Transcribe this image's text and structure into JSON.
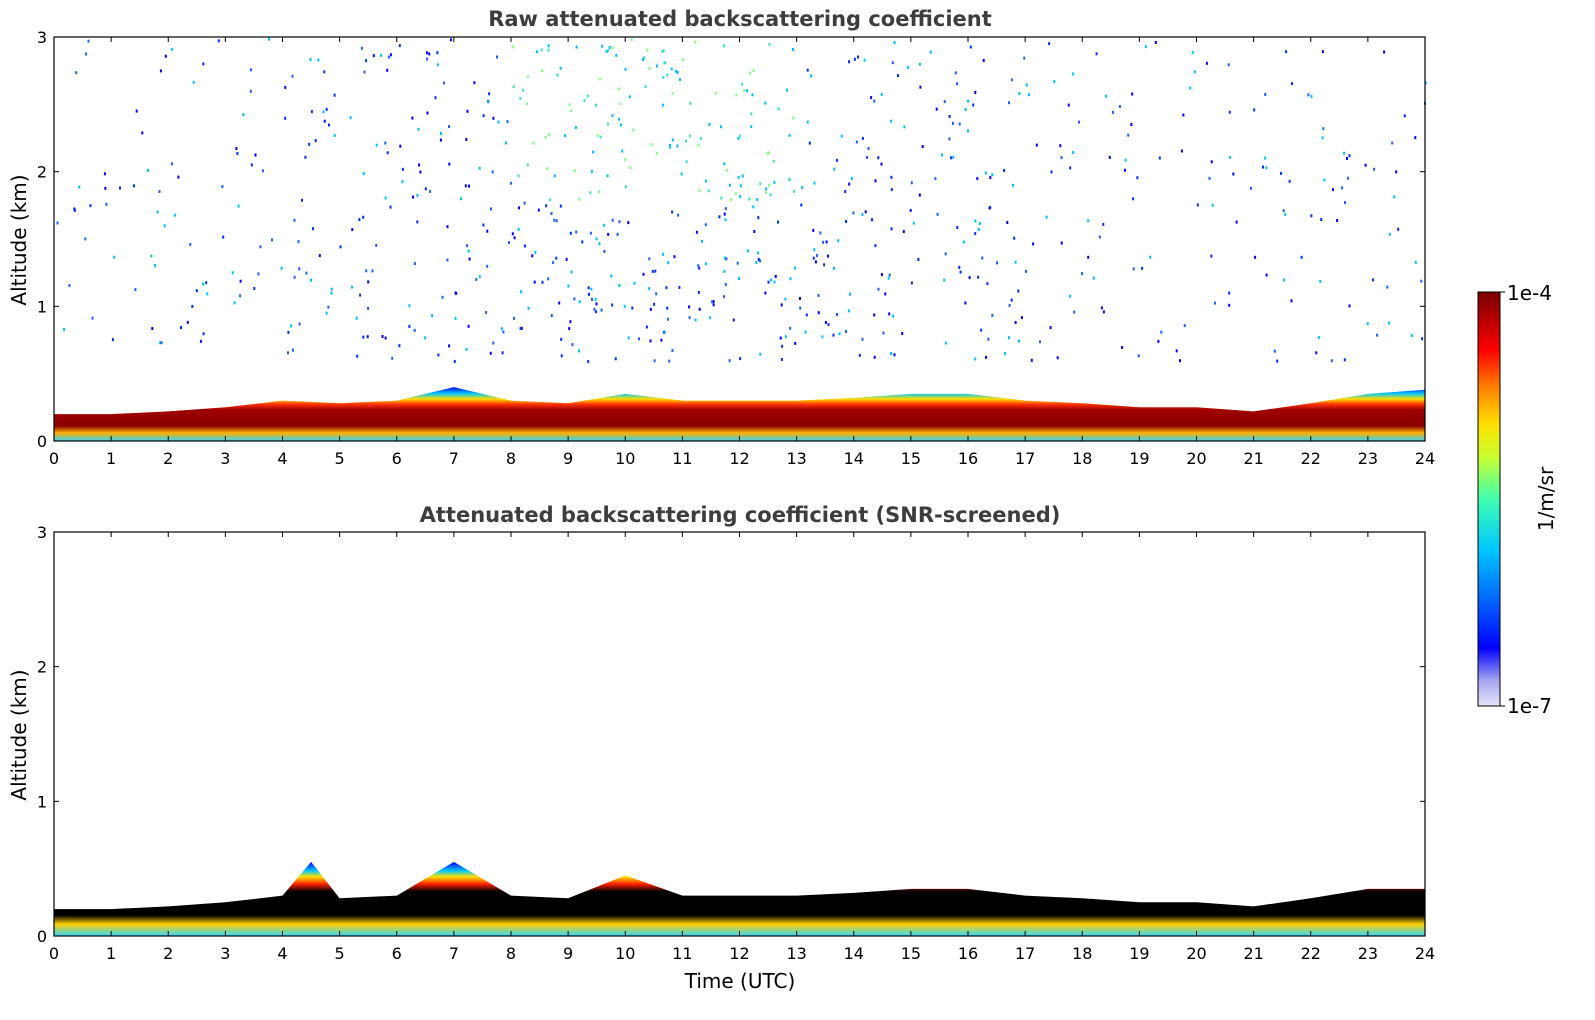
{
  "chart_data": [
    {
      "type": "heatmap",
      "title": "Raw attenuated backscattering coefficient",
      "xlabel": "",
      "ylabel": "Altitude (km)",
      "xlim": [
        0,
        24
      ],
      "ylim": [
        0,
        3
      ],
      "x_ticks": [
        "0",
        "1",
        "2",
        "3",
        "4",
        "5",
        "6",
        "7",
        "8",
        "9",
        "10",
        "11",
        "12",
        "13",
        "14",
        "15",
        "16",
        "17",
        "18",
        "19",
        "20",
        "21",
        "22",
        "23",
        "24"
      ],
      "y_ticks": [
        "0",
        "1",
        "2",
        "3"
      ],
      "layer_top_km": [
        [
          0,
          0.2
        ],
        [
          1,
          0.2
        ],
        [
          2,
          0.22
        ],
        [
          3,
          0.25
        ],
        [
          4,
          0.3
        ],
        [
          5,
          0.28
        ],
        [
          6,
          0.3
        ],
        [
          7,
          0.4
        ],
        [
          8,
          0.3
        ],
        [
          9,
          0.28
        ],
        [
          10,
          0.35
        ],
        [
          11,
          0.3
        ],
        [
          12,
          0.3
        ],
        [
          13,
          0.3
        ],
        [
          14,
          0.32
        ],
        [
          15,
          0.35
        ],
        [
          16,
          0.35
        ],
        [
          17,
          0.3
        ],
        [
          18,
          0.28
        ],
        [
          19,
          0.25
        ],
        [
          20,
          0.25
        ],
        [
          21,
          0.22
        ],
        [
          22,
          0.28
        ],
        [
          23,
          0.35
        ],
        [
          24,
          0.38
        ]
      ],
      "noise_region": "Scattered noise from 0.5 to 3 km, densest between 7 and 14 UTC"
    },
    {
      "type": "heatmap",
      "title": "Attenuated backscattering coefficient (SNR-screened)",
      "xlabel": "Time (UTC)",
      "ylabel": "Altitude (km)",
      "xlim": [
        0,
        24
      ],
      "ylim": [
        0,
        3
      ],
      "x_ticks": [
        "0",
        "1",
        "2",
        "3",
        "4",
        "5",
        "6",
        "7",
        "8",
        "9",
        "10",
        "11",
        "12",
        "13",
        "14",
        "15",
        "16",
        "17",
        "18",
        "19",
        "20",
        "21",
        "22",
        "23",
        "24"
      ],
      "y_ticks": [
        "0",
        "1",
        "2",
        "3"
      ],
      "layer_top_km": [
        [
          0,
          0.2
        ],
        [
          1,
          0.2
        ],
        [
          2,
          0.22
        ],
        [
          3,
          0.25
        ],
        [
          4,
          0.3
        ],
        [
          4.5,
          0.55
        ],
        [
          5,
          0.28
        ],
        [
          6,
          0.3
        ],
        [
          7,
          0.55
        ],
        [
          8,
          0.3
        ],
        [
          9,
          0.28
        ],
        [
          10,
          0.45
        ],
        [
          11,
          0.3
        ],
        [
          12,
          0.3
        ],
        [
          13,
          0.3
        ],
        [
          14,
          0.32
        ],
        [
          15,
          0.35
        ],
        [
          16,
          0.35
        ],
        [
          17,
          0.3
        ],
        [
          18,
          0.28
        ],
        [
          19,
          0.25
        ],
        [
          20,
          0.25
        ],
        [
          21,
          0.22
        ],
        [
          22,
          0.28
        ],
        [
          23,
          0.35
        ],
        [
          24,
          0.35
        ]
      ]
    }
  ],
  "colorbar": {
    "label": "1/m/sr",
    "max_label": "1e-4",
    "min_label": "1e-7",
    "colors": [
      "#e4e4f8",
      "#a8a8f0",
      "#0000ff",
      "#0060ff",
      "#00c8ff",
      "#40ffb0",
      "#c8ff30",
      "#ffe000",
      "#ff8000",
      "#ff0000",
      "#b00000",
      "#7a0000"
    ]
  }
}
